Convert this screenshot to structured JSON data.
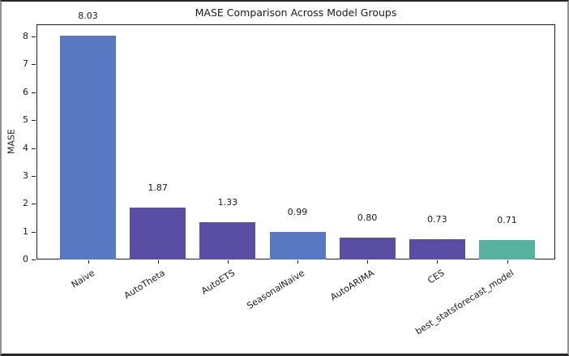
{
  "chart_data": {
    "type": "bar",
    "title": "MASE Comparison Across Model Groups",
    "xlabel": "",
    "ylabel": "MASE",
    "categories": [
      "Naive",
      "AutoTheta",
      "AutoETS",
      "SeasonalNaive",
      "AutoARIMA",
      "CES",
      "best_statsforecast_model"
    ],
    "values": [
      8.03,
      1.87,
      1.33,
      0.99,
      0.8,
      0.73,
      0.71
    ],
    "value_labels": [
      "8.03",
      "1.87",
      "1.33",
      "0.99",
      "0.80",
      "0.73",
      "0.71"
    ],
    "bar_colors": [
      "#5878c2",
      "#5a4ea2",
      "#5a4ea2",
      "#5878c2",
      "#5a4ea2",
      "#5a4ea2",
      "#56b29f"
    ],
    "ylim": [
      0,
      8.44
    ],
    "yticks": [
      0,
      1,
      2,
      3,
      4,
      5,
      6,
      7,
      8
    ],
    "grid": "horizontal-dashed",
    "legend": "none",
    "colors": {
      "blue": "#5878c2",
      "purple": "#5a4ea2",
      "teal": "#56b29f",
      "axis": "#1f1f1f",
      "grid": "#d6d6d6",
      "background": "#ffffff"
    }
  }
}
